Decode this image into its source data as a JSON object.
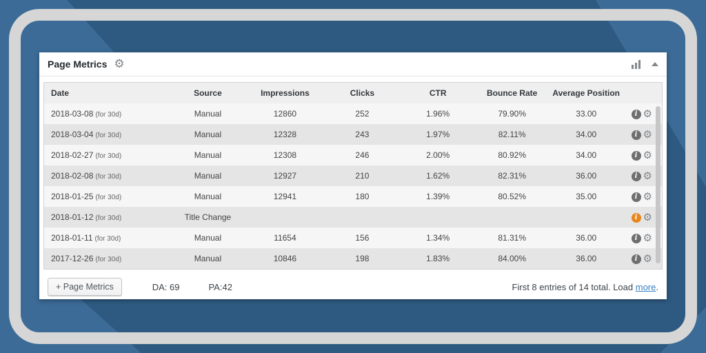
{
  "panel": {
    "title": "Page Metrics",
    "header_icons": [
      "gear-icon",
      "bar-chart-icon",
      "collapse-arrow"
    ]
  },
  "table": {
    "columns": [
      "Date",
      "Source",
      "Impressions",
      "Clicks",
      "CTR",
      "Bounce Rate",
      "Average Position"
    ],
    "rows": [
      {
        "date": "2018-03-08",
        "period": "(for 30d)",
        "source": "Manual",
        "impressions": "12860",
        "clicks": "252",
        "ctr": "1.96%",
        "bounce_rate": "79.90%",
        "avg_position": "33.00",
        "info_state": "default"
      },
      {
        "date": "2018-03-04",
        "period": "(for 30d)",
        "source": "Manual",
        "impressions": "12328",
        "clicks": "243",
        "ctr": "1.97%",
        "bounce_rate": "82.11%",
        "avg_position": "34.00",
        "info_state": "default"
      },
      {
        "date": "2018-02-27",
        "period": "(for 30d)",
        "source": "Manual",
        "impressions": "12308",
        "clicks": "246",
        "ctr": "2.00%",
        "bounce_rate": "80.92%",
        "avg_position": "34.00",
        "info_state": "default"
      },
      {
        "date": "2018-02-08",
        "period": "(for 30d)",
        "source": "Manual",
        "impressions": "12927",
        "clicks": "210",
        "ctr": "1.62%",
        "bounce_rate": "82.31%",
        "avg_position": "36.00",
        "info_state": "default"
      },
      {
        "date": "2018-01-25",
        "period": "(for 30d)",
        "source": "Manual",
        "impressions": "12941",
        "clicks": "180",
        "ctr": "1.39%",
        "bounce_rate": "80.52%",
        "avg_position": "35.00",
        "info_state": "default"
      },
      {
        "date": "2018-01-12",
        "period": "(for 30d)",
        "source": "Title Change",
        "impressions": "",
        "clicks": "",
        "ctr": "",
        "bounce_rate": "",
        "avg_position": "",
        "info_state": "alert"
      },
      {
        "date": "2018-01-11",
        "period": "(for 30d)",
        "source": "Manual",
        "impressions": "11654",
        "clicks": "156",
        "ctr": "1.34%",
        "bounce_rate": "81.31%",
        "avg_position": "36.00",
        "info_state": "default"
      },
      {
        "date": "2017-12-26",
        "period": "(for 30d)",
        "source": "Manual",
        "impressions": "10846",
        "clicks": "198",
        "ctr": "1.83%",
        "bounce_rate": "84.00%",
        "avg_position": "36.00",
        "info_state": "default"
      }
    ],
    "info_glyph": "i"
  },
  "footer": {
    "add_button_label": "+ Page Metrics",
    "da_stat": "DA: 69",
    "pa_stat": "PA:42",
    "summary_prefix": "First 8 entries of 14 total. Load ",
    "load_more_label": "more",
    "summary_suffix": "."
  },
  "colors": {
    "background_light_blue": "#3b6b96",
    "background_dark_blue": "#2e5a81",
    "frame_gray": "#d6d6d6",
    "alert_orange": "#e8861c",
    "link_blue": "#3582c4",
    "row_stripe_light": "#f6f6f6",
    "row_stripe_dark": "#e5e5e5"
  }
}
